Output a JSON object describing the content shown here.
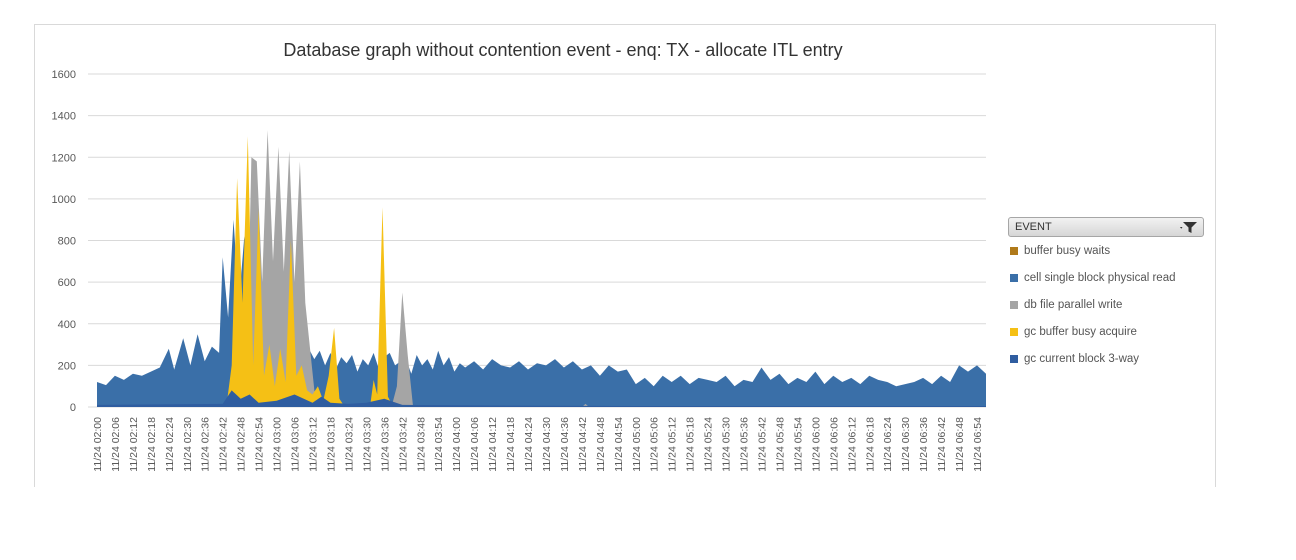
{
  "chart_data": {
    "type": "area",
    "title": "Database graph without contention event - enq: TX - allocate ITL entry",
    "xlabel": "",
    "ylabel": "",
    "ylim": [
      0,
      1600
    ],
    "yticks": [
      "0",
      "200",
      "400",
      "600",
      "800",
      "1000",
      "1200",
      "1400",
      "1600"
    ],
    "grid": true,
    "legend_position": "right",
    "legend_header": "EVENT",
    "x_labels": [
      "11/24 02:00",
      "11/24 02:06",
      "11/24 02:12",
      "11/24 02:18",
      "11/24 02:24",
      "11/24 02:30",
      "11/24 02:36",
      "11/24 02:42",
      "11/24 02:48",
      "11/24 02:54",
      "11/24 03:00",
      "11/24 03:06",
      "11/24 03:12",
      "11/24 03:18",
      "11/24 03:24",
      "11/24 03:30",
      "11/24 03:36",
      "11/24 03:42",
      "11/24 03:48",
      "11/24 03:54",
      "11/24 04:00",
      "11/24 04:06",
      "11/24 04:12",
      "11/24 04:18",
      "11/24 04:24",
      "11/24 04:30",
      "11/24 04:36",
      "11/24 04:42",
      "11/24 04:48",
      "11/24 04:54",
      "11/24 05:00",
      "11/24 05:06",
      "11/24 05:12",
      "11/24 05:18",
      "11/24 05:24",
      "11/24 05:30",
      "11/24 05:36",
      "11/24 05:42",
      "11/24 05:48",
      "11/24 05:54",
      "11/24 06:00",
      "11/24 06:06",
      "11/24 06:12",
      "11/24 06:18",
      "11/24 06:24",
      "11/24 06:30",
      "11/24 06:36",
      "11/24 06:42",
      "11/24 06:48",
      "11/24 06:54"
    ],
    "series": [
      {
        "name": "buffer busy waits",
        "color": "#b07a1a",
        "points": [
          [
            0,
            0
          ],
          [
            27,
            0
          ],
          [
            27.3,
            25
          ],
          [
            27.6,
            0
          ],
          [
            44,
            0
          ],
          [
            44.3,
            20
          ],
          [
            44.6,
            0
          ],
          [
            49.5,
            0
          ]
        ]
      },
      {
        "name": "cell single block physical read",
        "color": "#3a6fa8",
        "points": [
          [
            0,
            120
          ],
          [
            0.5,
            105
          ],
          [
            1,
            150
          ],
          [
            1.5,
            130
          ],
          [
            2,
            160
          ],
          [
            2.5,
            150
          ],
          [
            3,
            170
          ],
          [
            3.5,
            190
          ],
          [
            4,
            280
          ],
          [
            4.3,
            180
          ],
          [
            4.8,
            330
          ],
          [
            5.2,
            200
          ],
          [
            5.6,
            350
          ],
          [
            6,
            220
          ],
          [
            6.4,
            290
          ],
          [
            6.8,
            260
          ],
          [
            7,
            720
          ],
          [
            7.3,
            430
          ],
          [
            7.6,
            900
          ],
          [
            7.9,
            500
          ],
          [
            8.2,
            820
          ],
          [
            8.5,
            300
          ],
          [
            8.8,
            700
          ],
          [
            9.1,
            520
          ],
          [
            9.4,
            600
          ],
          [
            9.7,
            400
          ],
          [
            10,
            520
          ],
          [
            10.3,
            350
          ],
          [
            10.6,
            880
          ],
          [
            10.9,
            300
          ],
          [
            11.2,
            360
          ],
          [
            11.5,
            260
          ],
          [
            11.8,
            280
          ],
          [
            12.1,
            230
          ],
          [
            12.4,
            270
          ],
          [
            12.7,
            200
          ],
          [
            13,
            260
          ],
          [
            13.3,
            180
          ],
          [
            13.6,
            240
          ],
          [
            13.9,
            210
          ],
          [
            14.2,
            250
          ],
          [
            14.5,
            170
          ],
          [
            14.8,
            230
          ],
          [
            15.1,
            200
          ],
          [
            15.4,
            260
          ],
          [
            15.7,
            180
          ],
          [
            16,
            240
          ],
          [
            16.3,
            260
          ],
          [
            16.6,
            200
          ],
          [
            16.9,
            220
          ],
          [
            17.2,
            230
          ],
          [
            17.5,
            160
          ],
          [
            17.8,
            250
          ],
          [
            18.1,
            200
          ],
          [
            18.4,
            230
          ],
          [
            18.7,
            180
          ],
          [
            19,
            270
          ],
          [
            19.3,
            200
          ],
          [
            19.6,
            240
          ],
          [
            19.9,
            170
          ],
          [
            20.2,
            210
          ],
          [
            20.5,
            190
          ],
          [
            21,
            220
          ],
          [
            21.5,
            180
          ],
          [
            22,
            230
          ],
          [
            22.5,
            200
          ],
          [
            23,
            190
          ],
          [
            23.5,
            220
          ],
          [
            24,
            180
          ],
          [
            24.5,
            210
          ],
          [
            25,
            200
          ],
          [
            25.5,
            230
          ],
          [
            26,
            190
          ],
          [
            26.5,
            220
          ],
          [
            27,
            180
          ],
          [
            27.5,
            200
          ],
          [
            28,
            150
          ],
          [
            28.5,
            200
          ],
          [
            29,
            170
          ],
          [
            29.5,
            180
          ],
          [
            30,
            110
          ],
          [
            30.5,
            140
          ],
          [
            31,
            100
          ],
          [
            31.5,
            150
          ],
          [
            32,
            120
          ],
          [
            32.5,
            150
          ],
          [
            33,
            110
          ],
          [
            33.5,
            140
          ],
          [
            34,
            130
          ],
          [
            34.5,
            120
          ],
          [
            35,
            150
          ],
          [
            35.5,
            100
          ],
          [
            36,
            130
          ],
          [
            36.5,
            120
          ],
          [
            37,
            190
          ],
          [
            37.5,
            130
          ],
          [
            38,
            160
          ],
          [
            38.5,
            110
          ],
          [
            39,
            140
          ],
          [
            39.5,
            120
          ],
          [
            40,
            170
          ],
          [
            40.5,
            110
          ],
          [
            41,
            150
          ],
          [
            41.5,
            120
          ],
          [
            42,
            140
          ],
          [
            42.5,
            110
          ],
          [
            43,
            150
          ],
          [
            43.5,
            130
          ],
          [
            44,
            120
          ],
          [
            44.5,
            100
          ],
          [
            45,
            110
          ],
          [
            45.5,
            120
          ],
          [
            46,
            140
          ],
          [
            46.5,
            110
          ],
          [
            47,
            150
          ],
          [
            47.5,
            120
          ],
          [
            48,
            200
          ],
          [
            48.5,
            170
          ],
          [
            49,
            200
          ],
          [
            49.5,
            160
          ]
        ]
      },
      {
        "name": "db file parallel write",
        "color": "#a5a5a5",
        "points": [
          [
            0,
            0
          ],
          [
            8.3,
            0
          ],
          [
            8.6,
            1200
          ],
          [
            8.9,
            1180
          ],
          [
            9.2,
            600
          ],
          [
            9.5,
            1330
          ],
          [
            9.8,
            700
          ],
          [
            10.1,
            1250
          ],
          [
            10.4,
            650
          ],
          [
            10.7,
            1230
          ],
          [
            11,
            600
          ],
          [
            11.3,
            1180
          ],
          [
            11.6,
            500
          ],
          [
            11.9,
            250
          ],
          [
            12.2,
            0
          ],
          [
            16.4,
            0
          ],
          [
            16.7,
            100
          ],
          [
            17,
            550
          ],
          [
            17.3,
            250
          ],
          [
            17.6,
            0
          ],
          [
            27,
            0
          ],
          [
            27.2,
            15
          ],
          [
            27.4,
            0
          ],
          [
            49.5,
            0
          ]
        ]
      },
      {
        "name": "gc buffer busy acquire",
        "color": "#f5c015",
        "points": [
          [
            0,
            0
          ],
          [
            7.2,
            0
          ],
          [
            7.5,
            200
          ],
          [
            7.8,
            1100
          ],
          [
            8.1,
            500
          ],
          [
            8.4,
            1300
          ],
          [
            8.7,
            200
          ],
          [
            9,
            950
          ],
          [
            9.3,
            150
          ],
          [
            9.6,
            300
          ],
          [
            9.9,
            100
          ],
          [
            10.2,
            280
          ],
          [
            10.5,
            120
          ],
          [
            10.8,
            800
          ],
          [
            11.1,
            150
          ],
          [
            11.4,
            200
          ],
          [
            11.7,
            80
          ],
          [
            12,
            60
          ],
          [
            12.3,
            100
          ],
          [
            12.6,
            30
          ],
          [
            12.9,
            150
          ],
          [
            13.2,
            380
          ],
          [
            13.5,
            40
          ],
          [
            13.8,
            0
          ],
          [
            15.2,
            0
          ],
          [
            15.4,
            130
          ],
          [
            15.6,
            60
          ],
          [
            15.9,
            960
          ],
          [
            16.2,
            50
          ],
          [
            16.5,
            0
          ],
          [
            49.5,
            0
          ]
        ]
      },
      {
        "name": "gc current block 3-way",
        "color": "#2f5da0",
        "points": [
          [
            0,
            10
          ],
          [
            7,
            15
          ],
          [
            7.5,
            80
          ],
          [
            8,
            40
          ],
          [
            8.5,
            60
          ],
          [
            9,
            20
          ],
          [
            10,
            30
          ],
          [
            11,
            60
          ],
          [
            12,
            20
          ],
          [
            12.5,
            50
          ],
          [
            13,
            20
          ],
          [
            14,
            15
          ],
          [
            15,
            20
          ],
          [
            16,
            40
          ],
          [
            17,
            10
          ],
          [
            20,
            8
          ],
          [
            25,
            6
          ],
          [
            30,
            5
          ],
          [
            35,
            5
          ],
          [
            40,
            5
          ],
          [
            45,
            5
          ],
          [
            49.5,
            5
          ]
        ]
      }
    ]
  }
}
